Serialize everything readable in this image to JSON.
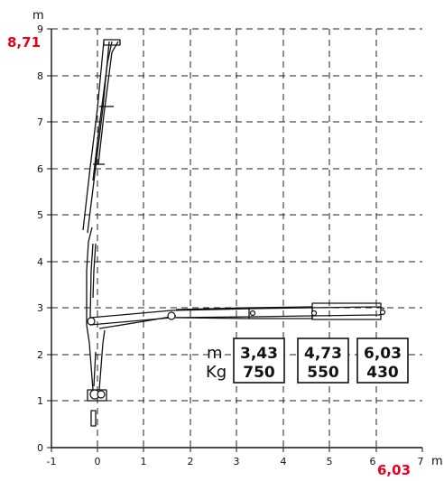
{
  "axes": {
    "x_unit": "m",
    "y_unit": "m",
    "x_ticks": [
      "-1",
      "0",
      "1",
      "2",
      "3",
      "4",
      "5",
      "6",
      "7"
    ],
    "y_ticks": [
      "0",
      "1",
      "2",
      "3",
      "4",
      "5",
      "6",
      "7",
      "8",
      "9"
    ]
  },
  "highlights": {
    "max_height": "8,71",
    "max_reach": "6,03",
    "color": "#e8001c"
  },
  "load_table": {
    "row_labels": [
      "m",
      "Kg"
    ],
    "columns": [
      {
        "reach": "3,43",
        "load": "750"
      },
      {
        "reach": "4,73",
        "load": "550"
      },
      {
        "reach": "6,03",
        "load": "430"
      }
    ]
  }
}
